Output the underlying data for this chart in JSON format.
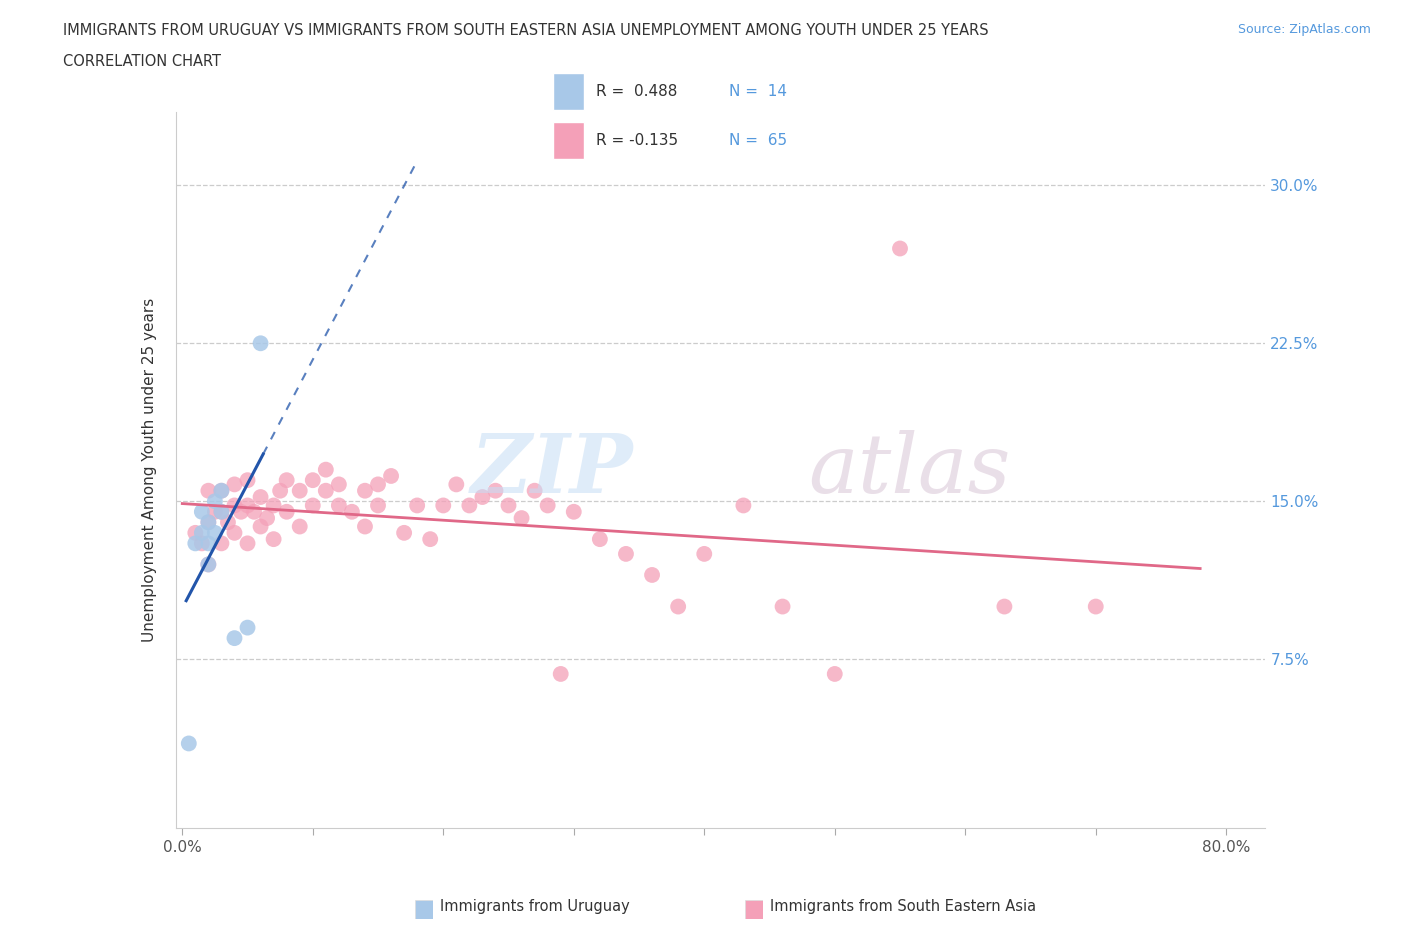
{
  "title_line1": "IMMIGRANTS FROM URUGUAY VS IMMIGRANTS FROM SOUTH EASTERN ASIA UNEMPLOYMENT AMONG YOUTH UNDER 25 YEARS",
  "title_line2": "CORRELATION CHART",
  "source": "Source: ZipAtlas.com",
  "ylabel": "Unemployment Among Youth under 25 years",
  "y_tick_positions": [
    0.075,
    0.15,
    0.225,
    0.3
  ],
  "y_tick_labels": [
    "7.5%",
    "15.0%",
    "22.5%",
    "30.0%"
  ],
  "xlim": [
    -0.005,
    0.83
  ],
  "ylim": [
    -0.005,
    0.335
  ],
  "r_uruguay": 0.488,
  "n_uruguay": 14,
  "r_sea": -0.135,
  "n_sea": 65,
  "color_uruguay": "#a8c8e8",
  "color_sea": "#f4a0b8",
  "line_color_uruguay": "#2255aa",
  "line_color_sea": "#e06888",
  "legend_labels": [
    "Immigrants from Uruguay",
    "Immigrants from South Eastern Asia"
  ],
  "uruguay_x": [
    0.005,
    0.01,
    0.015,
    0.015,
    0.02,
    0.02,
    0.02,
    0.025,
    0.025,
    0.03,
    0.03,
    0.04,
    0.05,
    0.06
  ],
  "uruguay_y": [
    0.035,
    0.13,
    0.135,
    0.145,
    0.12,
    0.13,
    0.14,
    0.135,
    0.15,
    0.145,
    0.155,
    0.085,
    0.09,
    0.225
  ],
  "sea_x": [
    0.01,
    0.015,
    0.02,
    0.02,
    0.02,
    0.025,
    0.03,
    0.03,
    0.03,
    0.035,
    0.04,
    0.04,
    0.04,
    0.045,
    0.05,
    0.05,
    0.05,
    0.055,
    0.06,
    0.06,
    0.065,
    0.07,
    0.07,
    0.075,
    0.08,
    0.08,
    0.09,
    0.09,
    0.1,
    0.1,
    0.11,
    0.11,
    0.12,
    0.12,
    0.13,
    0.14,
    0.14,
    0.15,
    0.15,
    0.16,
    0.17,
    0.18,
    0.19,
    0.2,
    0.21,
    0.22,
    0.23,
    0.24,
    0.25,
    0.26,
    0.27,
    0.28,
    0.29,
    0.3,
    0.32,
    0.34,
    0.36,
    0.38,
    0.4,
    0.43,
    0.46,
    0.5,
    0.55,
    0.63,
    0.7
  ],
  "sea_y": [
    0.135,
    0.13,
    0.14,
    0.155,
    0.12,
    0.145,
    0.13,
    0.145,
    0.155,
    0.14,
    0.135,
    0.148,
    0.158,
    0.145,
    0.13,
    0.148,
    0.16,
    0.145,
    0.138,
    0.152,
    0.142,
    0.132,
    0.148,
    0.155,
    0.145,
    0.16,
    0.138,
    0.155,
    0.148,
    0.16,
    0.155,
    0.165,
    0.148,
    0.158,
    0.145,
    0.138,
    0.155,
    0.148,
    0.158,
    0.162,
    0.135,
    0.148,
    0.132,
    0.148,
    0.158,
    0.148,
    0.152,
    0.155,
    0.148,
    0.142,
    0.155,
    0.148,
    0.068,
    0.145,
    0.132,
    0.125,
    0.115,
    0.1,
    0.125,
    0.148,
    0.1,
    0.068,
    0.27,
    0.1,
    0.1
  ]
}
